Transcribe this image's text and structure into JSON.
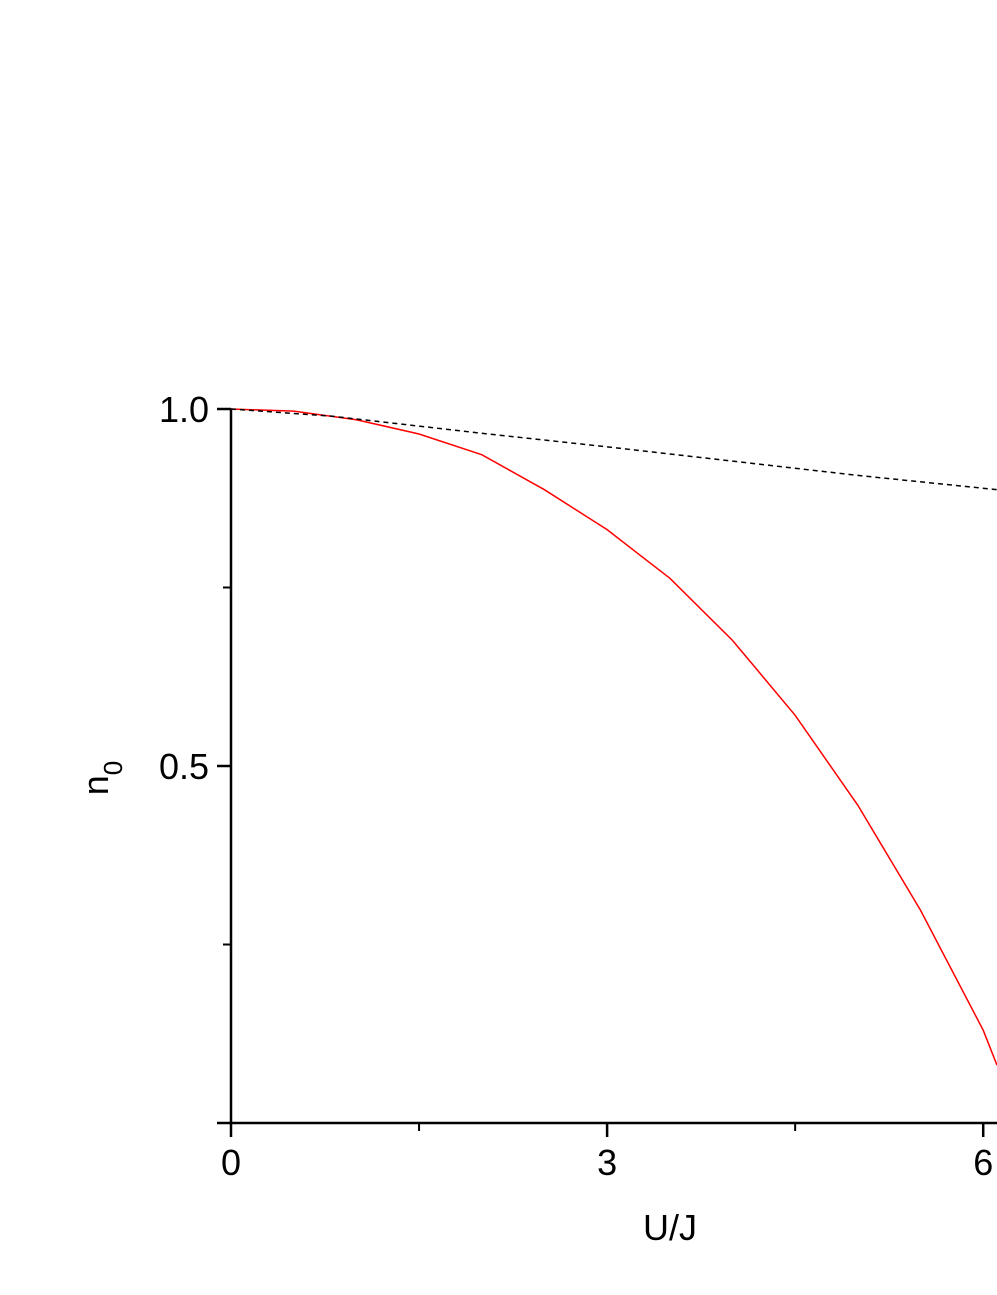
{
  "chart_data": {
    "type": "line",
    "xlabel": "U/J",
    "ylabel": "n",
    "ylabel_subscript": "0",
    "xlim": [
      0,
      6.11
    ],
    "ylim": [
      0,
      1.0
    ],
    "xticks": [
      0,
      3,
      6
    ],
    "xminor": [
      1.5,
      4.5
    ],
    "yticks": [
      {
        "value": 0.5,
        "label": "0.5"
      },
      {
        "value": 1,
        "label": "1.0"
      }
    ],
    "yminor": [
      0.25,
      0.75
    ],
    "series": [
      {
        "color": "#ff0000",
        "dash": false,
        "x": [
          0,
          0.5,
          1,
          1.5,
          2,
          2.5,
          3,
          3.5,
          4,
          4.5,
          5,
          5.5,
          6,
          6.11
        ],
        "values": [
          1.0,
          0.997,
          0.985,
          0.965,
          0.936,
          0.887,
          0.831,
          0.763,
          0.676,
          0.571,
          0.445,
          0.298,
          0.13,
          0.081
        ]
      },
      {
        "color": "#000000",
        "dash": true,
        "x": [
          0,
          0.8,
          1,
          2,
          3,
          4,
          5,
          6.11
        ],
        "values": [
          1.0,
          0.99,
          0.986,
          0.966,
          0.947,
          0.927,
          0.907,
          0.887
        ]
      }
    ]
  }
}
